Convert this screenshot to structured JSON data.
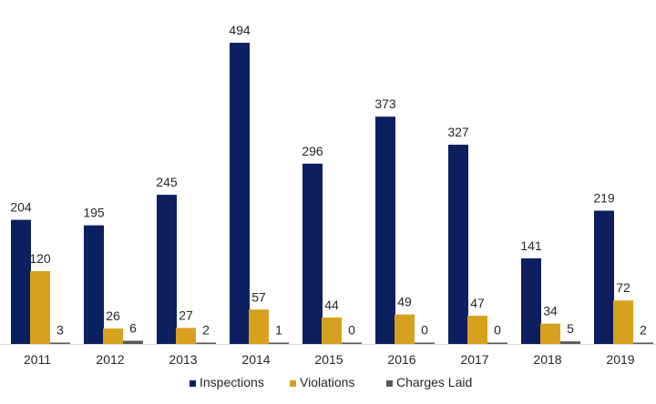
{
  "chart_data": {
    "type": "bar",
    "title": "",
    "xlabel": "",
    "ylabel": "",
    "ylim": [
      0,
      494
    ],
    "grid": false,
    "legend_position": "bottom-center",
    "categories": [
      "2011",
      "2012",
      "2013",
      "2014",
      "2015",
      "2016",
      "2017",
      "2018",
      "2019"
    ],
    "series": [
      {
        "name": "Inspections",
        "color": "#0c1f5e",
        "values": [
          204,
          195,
          245,
          494,
          296,
          373,
          327,
          141,
          219
        ]
      },
      {
        "name": "Violations",
        "color": "#d6a11f",
        "values": [
          120,
          26,
          27,
          57,
          44,
          49,
          47,
          34,
          72
        ]
      },
      {
        "name": "Charges Laid",
        "color": "#595959",
        "values": [
          3,
          6,
          2,
          1,
          0,
          0,
          0,
          5,
          2
        ]
      }
    ]
  }
}
